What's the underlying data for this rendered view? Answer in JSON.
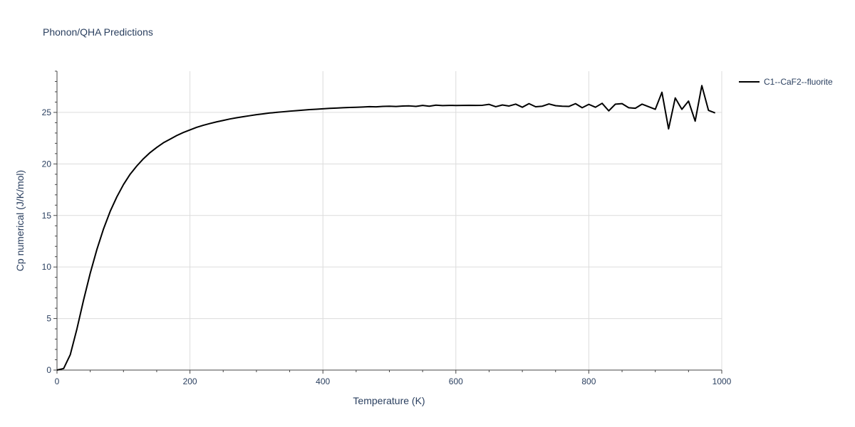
{
  "chart_data": {
    "type": "line",
    "title": "Phonon/QHA Predictions",
    "xlabel": "Temperature (K)",
    "ylabel": "Cp numerical (J/K/mol)",
    "xlim": [
      0,
      1000
    ],
    "ylim": [
      0,
      29
    ],
    "x_ticks": [
      0,
      200,
      400,
      600,
      800,
      1000
    ],
    "y_ticks": [
      0,
      5,
      10,
      15,
      20,
      25
    ],
    "x_tick_labels": [
      "0",
      "200",
      "400",
      "600",
      "800",
      "1000"
    ],
    "y_tick_labels": [
      "0",
      "5",
      "10",
      "15",
      "20",
      "25"
    ],
    "grid": true,
    "legend_position": "top-right",
    "series": [
      {
        "name": "C1--CaF2--fluorite",
        "color": "#000000",
        "x": [
          0,
          10,
          20,
          30,
          40,
          50,
          60,
          70,
          80,
          90,
          100,
          110,
          120,
          130,
          140,
          150,
          160,
          170,
          180,
          190,
          200,
          210,
          220,
          230,
          240,
          250,
          260,
          270,
          280,
          290,
          300,
          310,
          320,
          330,
          340,
          350,
          360,
          370,
          380,
          390,
          400,
          410,
          420,
          430,
          440,
          450,
          460,
          470,
          480,
          490,
          500,
          510,
          520,
          530,
          540,
          550,
          560,
          570,
          580,
          590,
          600,
          610,
          620,
          630,
          640,
          650,
          660,
          670,
          680,
          690,
          700,
          710,
          720,
          730,
          740,
          750,
          760,
          770,
          780,
          790,
          800,
          810,
          820,
          830,
          840,
          850,
          860,
          870,
          880,
          890,
          900,
          910,
          920,
          930,
          940,
          950,
          960,
          970,
          980,
          990
        ],
        "y": [
          0,
          0.15,
          1.5,
          4.0,
          6.8,
          9.4,
          11.7,
          13.7,
          15.4,
          16.8,
          18.0,
          19.0,
          19.8,
          20.5,
          21.1,
          21.6,
          22.05,
          22.4,
          22.75,
          23.05,
          23.3,
          23.55,
          23.75,
          23.92,
          24.08,
          24.22,
          24.36,
          24.48,
          24.58,
          24.68,
          24.78,
          24.86,
          24.94,
          25.0,
          25.06,
          25.12,
          25.17,
          25.22,
          25.27,
          25.31,
          25.35,
          25.39,
          25.42,
          25.45,
          25.48,
          25.5,
          25.52,
          25.56,
          25.54,
          25.58,
          25.6,
          25.57,
          25.62,
          25.63,
          25.58,
          25.68,
          25.6,
          25.7,
          25.66,
          25.68,
          25.67,
          25.68,
          25.69,
          25.68,
          25.69,
          25.78,
          25.55,
          25.72,
          25.62,
          25.8,
          25.5,
          25.85,
          25.55,
          25.6,
          25.82,
          25.65,
          25.6,
          25.58,
          25.85,
          25.45,
          25.78,
          25.5,
          25.88,
          25.15,
          25.8,
          25.85,
          25.45,
          25.4,
          25.8,
          25.55,
          25.3,
          26.95,
          23.4,
          26.4,
          25.3,
          26.1,
          24.15,
          27.6,
          25.2,
          24.95
        ]
      }
    ]
  }
}
